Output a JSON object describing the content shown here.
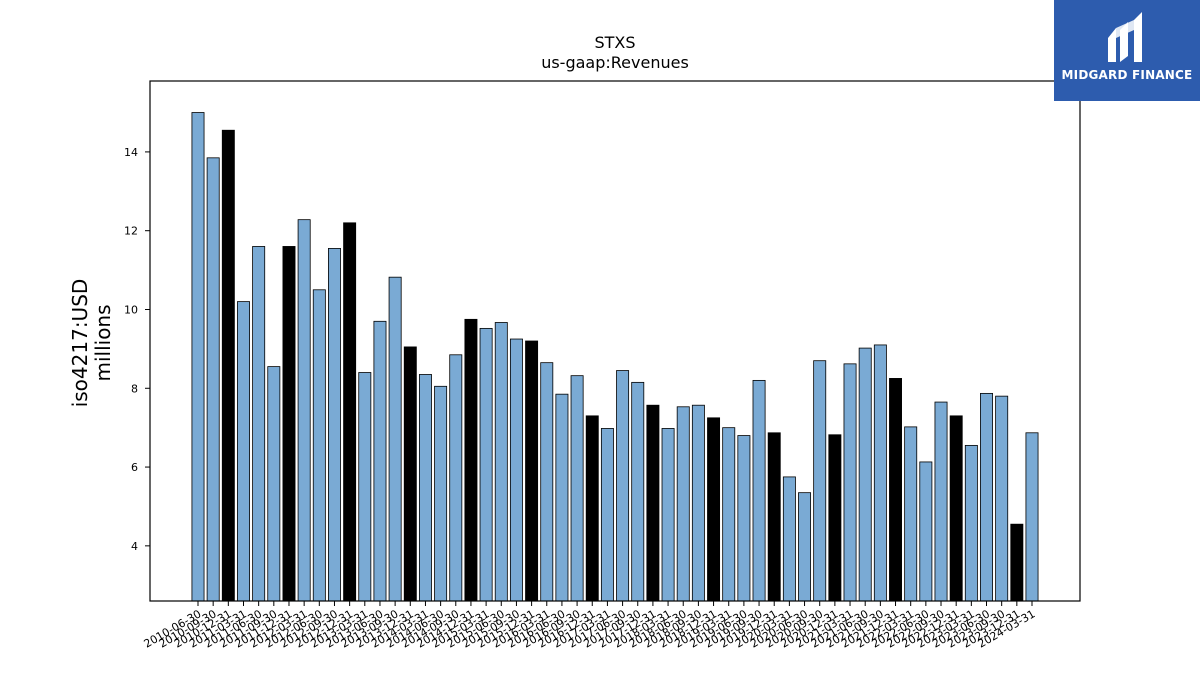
{
  "chart_data": {
    "type": "bar",
    "title": "STXS",
    "subtitle": "us-gaap:Revenues",
    "ylabel_line1": "iso4217:USD",
    "ylabel_line2": "millions",
    "ylim": [
      2.6,
      15.8
    ],
    "yticks": [
      4,
      6,
      8,
      10,
      12,
      14
    ],
    "grid": false,
    "colors": {
      "quarter": "#7aaad4",
      "fiscal_year_end": "#000000",
      "edge": "#000000"
    },
    "categories": [
      "2010-06-30",
      "2010-09-30",
      "2010-12-31",
      "2011-03-31",
      "2011-06-30",
      "2011-09-30",
      "2011-12-31",
      "2012-03-31",
      "2012-06-30",
      "2012-09-30",
      "2012-12-31",
      "2013-03-31",
      "2013-06-30",
      "2013-09-30",
      "2013-12-31",
      "2014-03-31",
      "2014-06-30",
      "2014-09-30",
      "2014-12-31",
      "2015-03-31",
      "2015-06-30",
      "2015-09-30",
      "2015-12-31",
      "2016-03-31",
      "2016-06-30",
      "2016-09-30",
      "2016-12-31",
      "2017-03-31",
      "2017-06-30",
      "2017-09-30",
      "2017-12-31",
      "2018-03-31",
      "2018-06-30",
      "2018-09-30",
      "2018-12-31",
      "2019-03-31",
      "2019-06-30",
      "2019-09-30",
      "2019-12-31",
      "2020-03-31",
      "2020-06-30",
      "2020-09-30",
      "2020-12-31",
      "2021-03-31",
      "2021-06-30",
      "2021-09-30",
      "2021-12-31",
      "2022-03-31",
      "2022-06-30",
      "2022-09-30",
      "2022-12-31",
      "2023-03-31",
      "2023-06-30",
      "2023-09-30",
      "2023-12-31",
      "2024-03-31"
    ],
    "values": [
      15.0,
      13.85,
      14.55,
      10.2,
      11.6,
      8.55,
      11.6,
      12.28,
      10.5,
      11.55,
      12.2,
      8.4,
      9.7,
      10.82,
      9.05,
      8.35,
      8.05,
      8.85,
      9.75,
      9.52,
      9.67,
      9.25,
      9.2,
      8.65,
      7.85,
      8.32,
      7.3,
      6.98,
      8.45,
      8.15,
      7.57,
      6.98,
      7.53,
      7.57,
      7.25,
      7.0,
      6.8,
      8.2,
      6.87,
      5.75,
      5.35,
      8.7,
      6.82,
      8.62,
      9.02,
      9.1,
      8.25,
      7.02,
      6.13,
      7.65,
      7.3,
      6.55,
      7.87,
      7.8,
      4.55,
      6.87
    ],
    "fiscal_year_end": [
      false,
      false,
      true,
      false,
      false,
      false,
      true,
      false,
      false,
      false,
      true,
      false,
      false,
      false,
      true,
      false,
      false,
      false,
      true,
      false,
      false,
      false,
      true,
      false,
      false,
      false,
      true,
      false,
      false,
      false,
      true,
      false,
      false,
      false,
      true,
      false,
      false,
      false,
      true,
      false,
      false,
      false,
      true,
      false,
      false,
      false,
      true,
      false,
      false,
      false,
      true,
      false,
      false,
      false,
      true,
      false
    ]
  },
  "logo": {
    "name": "MIDGARD FINANCE"
  }
}
